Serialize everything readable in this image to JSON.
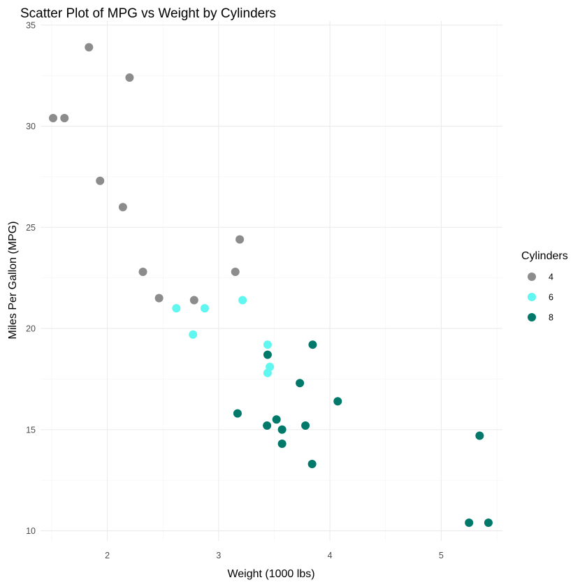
{
  "chart_data": {
    "type": "scatter",
    "title": "Scatter Plot of MPG vs Weight by Cylinders",
    "xlabel": "Weight (1000 lbs)",
    "ylabel": "Miles Per Gallon (MPG)",
    "xlim": [
      1.4,
      5.55
    ],
    "ylim": [
      9.5,
      35.2
    ],
    "x_ticks": [
      2,
      3,
      4,
      5
    ],
    "y_ticks": [
      10,
      15,
      20,
      25,
      30,
      35
    ],
    "grid": true,
    "legend": {
      "title": "Cylinders",
      "position": "right"
    },
    "series": [
      {
        "name": "4",
        "color": "#8c8c8c",
        "points": [
          {
            "x": 1.835,
            "y": 33.9
          },
          {
            "x": 2.2,
            "y": 32.4
          },
          {
            "x": 1.513,
            "y": 30.4
          },
          {
            "x": 1.615,
            "y": 30.4
          },
          {
            "x": 1.935,
            "y": 27.3
          },
          {
            "x": 2.14,
            "y": 26.0
          },
          {
            "x": 3.19,
            "y": 24.4
          },
          {
            "x": 2.32,
            "y": 22.8
          },
          {
            "x": 3.15,
            "y": 22.8
          },
          {
            "x": 2.465,
            "y": 21.5
          },
          {
            "x": 2.78,
            "y": 21.4
          }
        ]
      },
      {
        "name": "6",
        "color": "#5ff7ef",
        "points": [
          {
            "x": 2.62,
            "y": 21.0
          },
          {
            "x": 2.875,
            "y": 21.0
          },
          {
            "x": 3.215,
            "y": 21.4
          },
          {
            "x": 2.77,
            "y": 19.7
          },
          {
            "x": 3.44,
            "y": 19.2
          },
          {
            "x": 3.46,
            "y": 18.1
          },
          {
            "x": 3.44,
            "y": 17.8
          }
        ]
      },
      {
        "name": "8",
        "color": "#00796b",
        "points": [
          {
            "x": 3.44,
            "y": 18.7
          },
          {
            "x": 3.845,
            "y": 19.2
          },
          {
            "x": 3.73,
            "y": 17.3
          },
          {
            "x": 4.07,
            "y": 16.4
          },
          {
            "x": 3.17,
            "y": 15.8
          },
          {
            "x": 3.435,
            "y": 15.2
          },
          {
            "x": 3.52,
            "y": 15.5
          },
          {
            "x": 3.78,
            "y": 15.2
          },
          {
            "x": 3.57,
            "y": 15.0
          },
          {
            "x": 3.57,
            "y": 14.3
          },
          {
            "x": 5.345,
            "y": 14.7
          },
          {
            "x": 3.84,
            "y": 13.3
          },
          {
            "x": 5.25,
            "y": 10.4
          },
          {
            "x": 5.424,
            "y": 10.4
          }
        ]
      }
    ]
  }
}
